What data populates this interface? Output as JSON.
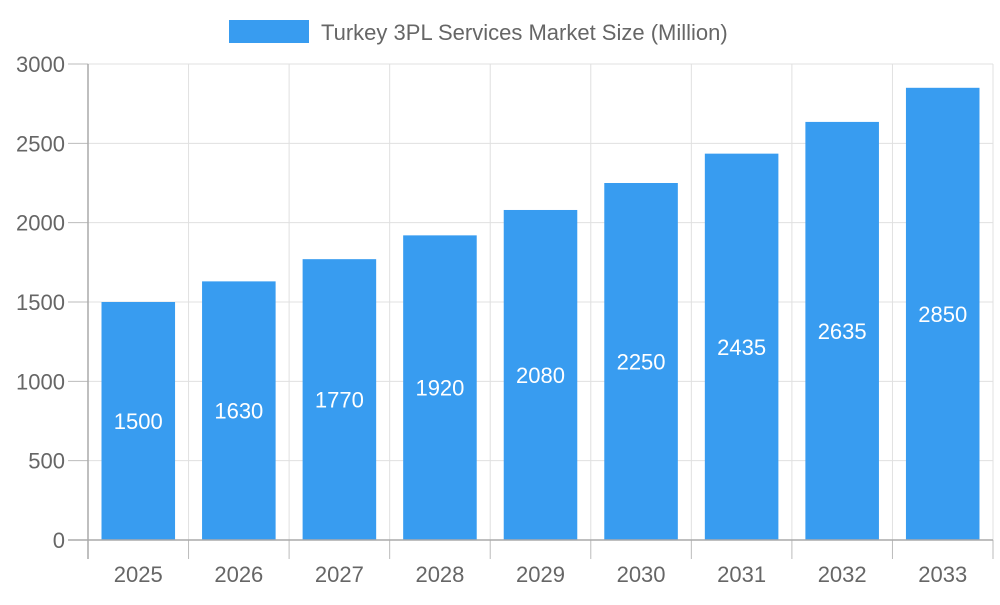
{
  "chart_data": {
    "type": "bar",
    "title": "",
    "categories": [
      "2025",
      "2026",
      "2027",
      "2028",
      "2029",
      "2030",
      "2031",
      "2032",
      "2033"
    ],
    "series": [
      {
        "name": "Turkey 3PL Services Market Size (Million)",
        "values": [
          1500,
          1630,
          1770,
          1920,
          2080,
          2250,
          2435,
          2635,
          2850
        ],
        "color": "#389cf0"
      }
    ],
    "xlabel": "",
    "ylabel": "",
    "ylim": [
      0,
      3000
    ],
    "yticks": [
      0,
      500,
      1000,
      1500,
      2000,
      2500,
      3000
    ],
    "grid": true,
    "legend_placement": "top",
    "data_labels": true
  }
}
